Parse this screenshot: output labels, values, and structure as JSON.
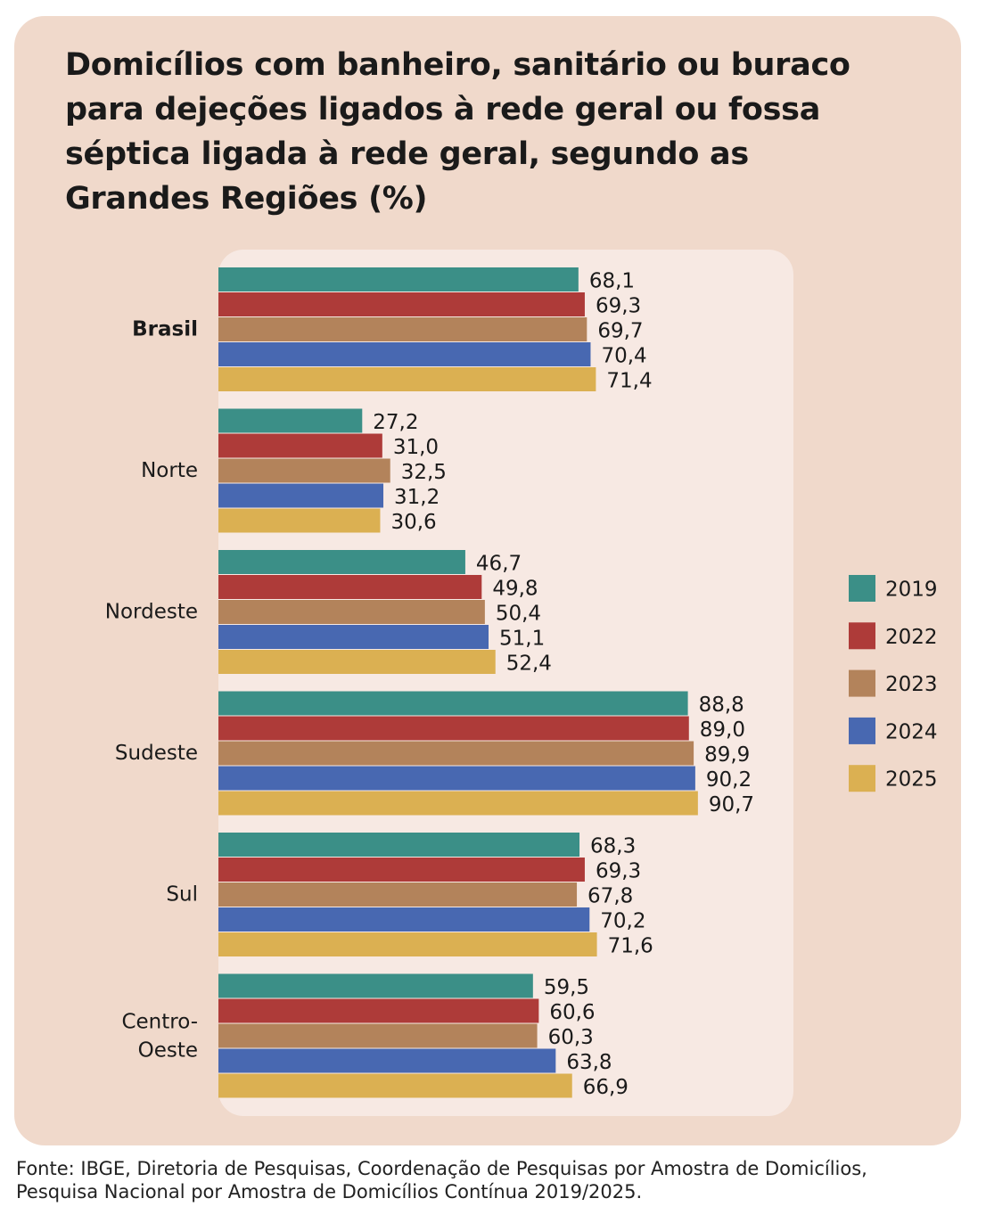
{
  "chart_data": {
    "type": "bar",
    "orientation": "horizontal",
    "title": "Domicílios com banheiro, sanitário ou buraco para dejeções ligados à rede geral ou fossa séptica ligada à rede geral, segundo as Grandes Regiões (%)",
    "categories": [
      "Brasil",
      "Norte",
      "Nordeste",
      "Sudeste",
      "Sul",
      "Centro-Oeste"
    ],
    "series": [
      {
        "name": "2019",
        "color": "#3b8f87",
        "values": [
          68.1,
          27.2,
          46.7,
          88.8,
          68.3,
          59.5
        ],
        "value_labels": [
          "68,1",
          "27,2",
          "46,7",
          "88,8",
          "68,3",
          "59,5"
        ]
      },
      {
        "name": "2022",
        "color": "#ae3b39",
        "values": [
          69.3,
          31.0,
          49.8,
          89.0,
          69.3,
          60.6
        ],
        "value_labels": [
          "69,3",
          "31,0",
          "49,8",
          "89,0",
          "69,3",
          "60,6"
        ]
      },
      {
        "name": "2023",
        "color": "#b3835b",
        "values": [
          69.7,
          32.5,
          50.4,
          89.9,
          67.8,
          60.3
        ],
        "value_labels": [
          "69,7",
          "32,5",
          "50,4",
          "89,9",
          "67,8",
          "60,3"
        ]
      },
      {
        "name": "2024",
        "color": "#4868b1",
        "values": [
          70.4,
          31.2,
          51.1,
          90.2,
          70.2,
          63.8
        ],
        "value_labels": [
          "70,4",
          "31,2",
          "51,1",
          "90,2",
          "70,2",
          "63,8"
        ]
      },
      {
        "name": "2025",
        "color": "#dbb052",
        "values": [
          71.4,
          30.6,
          52.4,
          90.7,
          71.6,
          66.9
        ],
        "value_labels": [
          "71,4",
          "30,6",
          "52,4",
          "90,7",
          "71,6",
          "66,9"
        ]
      }
    ],
    "source": "Fonte: IBGE, Diretoria de Pesquisas, Coordenação de Pesquisas por Amostra de Domicílios, Pesquisa Nacional por Amostra de Domicílios Contínua 2019/2025."
  }
}
